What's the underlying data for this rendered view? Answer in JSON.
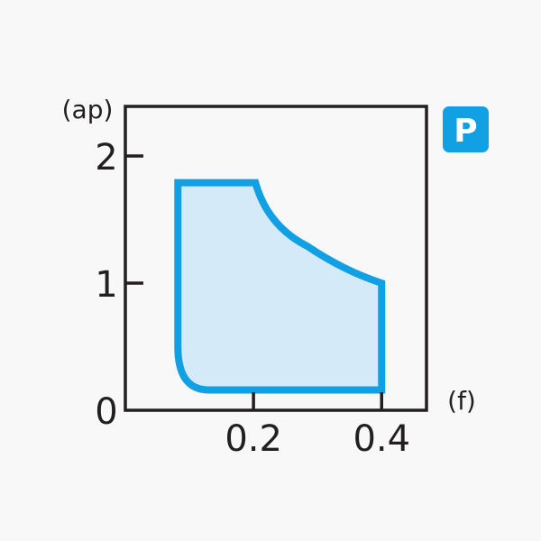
{
  "chart_data": {
    "type": "area",
    "xlabel": "(f)",
    "ylabel": "(ap)",
    "xlim": [
      0,
      0.47
    ],
    "ylim": [
      0,
      2.39
    ],
    "x_ticks": [
      {
        "value": 0.2,
        "label": "0.2"
      },
      {
        "value": 0.4,
        "label": "0.4"
      }
    ],
    "y_ticks": [
      {
        "value": 0,
        "label": "0"
      },
      {
        "value": 1,
        "label": "1"
      },
      {
        "value": 2,
        "label": "2"
      }
    ],
    "grid": false,
    "region": {
      "boundary": [
        [
          0.082,
          0.5
        ],
        [
          0.082,
          1.79
        ],
        [
          0.203,
          1.79
        ],
        [
          0.284,
          1.29
        ],
        [
          0.4,
          1.0
        ],
        [
          0.4,
          0.16
        ],
        [
          0.13,
          0.16
        ],
        [
          0.082,
          0.5
        ]
      ],
      "stroke_color": "#12a0e4",
      "fill_color": "#d5eaf8"
    },
    "badge": {
      "label": "P",
      "color": "#12a0e4"
    }
  }
}
